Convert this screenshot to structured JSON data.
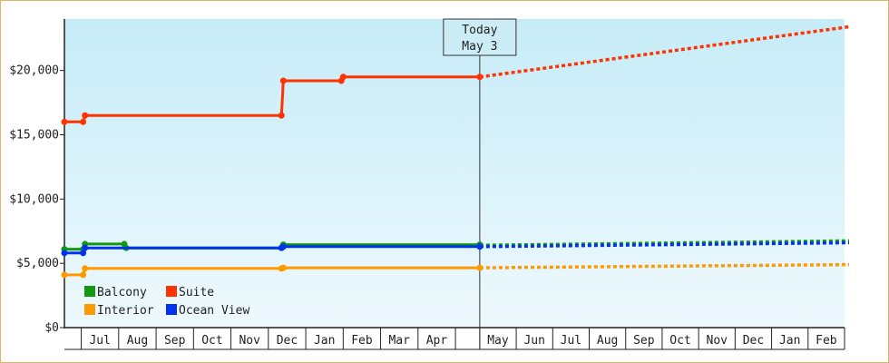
{
  "chart_data": {
    "type": "line",
    "title": "",
    "xlabel": "",
    "ylabel": "",
    "ylim": [
      0,
      24000
    ],
    "yticks": [
      "$0",
      "$5,000",
      "$10,000",
      "$15,000",
      "$20,000"
    ],
    "ytick_values": [
      0,
      5000,
      10000,
      15000,
      20000
    ],
    "grid": false,
    "legend_position": "bottom-left",
    "months_past": [
      "Jul",
      "Aug",
      "Sep",
      "Oct",
      "Nov",
      "Dec",
      "Jan",
      "Feb",
      "Mar",
      "Apr"
    ],
    "months_future": [
      "May",
      "Jun",
      "Jul",
      "Aug",
      "Sep",
      "Oct",
      "Nov",
      "Dec",
      "Jan",
      "Feb"
    ],
    "today_marker": {
      "line1": "Today",
      "line2": "May 3",
      "month_index": 11.1
    },
    "series": [
      {
        "name": "Suite",
        "color": "#ff3300",
        "points": [
          [
            0,
            16000
          ],
          [
            0.5,
            16000
          ],
          [
            0.55,
            16500
          ],
          [
            5.8,
            16500
          ],
          [
            5.85,
            19200
          ],
          [
            7.4,
            19200
          ],
          [
            7.45,
            19500
          ],
          [
            11.1,
            19500
          ]
        ],
        "forecast": [
          [
            11.1,
            19500
          ],
          [
            21,
            23400
          ]
        ]
      },
      {
        "name": "Balcony",
        "color": "#119911",
        "points": [
          [
            0,
            6100
          ],
          [
            0.5,
            6100
          ],
          [
            0.55,
            6500
          ],
          [
            1.6,
            6500
          ],
          [
            1.65,
            6200
          ],
          [
            5.8,
            6200
          ],
          [
            5.85,
            6450
          ],
          [
            11.1,
            6450
          ]
        ],
        "forecast": [
          [
            11.1,
            6400
          ],
          [
            21,
            6750
          ]
        ]
      },
      {
        "name": "Ocean View",
        "color": "#0033ee",
        "points": [
          [
            0,
            5800
          ],
          [
            0.5,
            5800
          ],
          [
            0.55,
            6200
          ],
          [
            5.8,
            6200
          ],
          [
            5.85,
            6300
          ],
          [
            11.1,
            6300
          ]
        ],
        "forecast": [
          [
            11.1,
            6300
          ],
          [
            21,
            6600
          ]
        ]
      },
      {
        "name": "Interior",
        "color": "#ff9900",
        "points": [
          [
            0,
            4100
          ],
          [
            0.5,
            4100
          ],
          [
            0.55,
            4600
          ],
          [
            5.8,
            4600
          ],
          [
            5.85,
            4650
          ],
          [
            11.1,
            4650
          ]
        ],
        "forecast": [
          [
            11.1,
            4650
          ],
          [
            21,
            4900
          ]
        ]
      }
    ],
    "legend": [
      {
        "name": "Balcony",
        "color": "#119911"
      },
      {
        "name": "Suite",
        "color": "#ff3300"
      },
      {
        "name": "Interior",
        "color": "#ff9900"
      },
      {
        "name": "Ocean View",
        "color": "#0033ee"
      }
    ]
  }
}
